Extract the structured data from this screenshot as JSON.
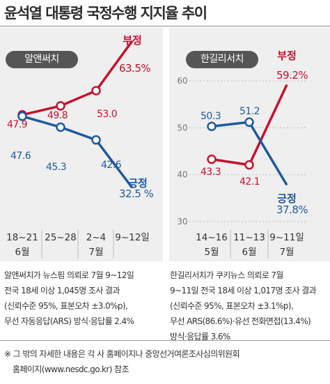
{
  "title": "윤석열 대통령 국정수행 지지율 추이",
  "charts": [
    {
      "type": "line",
      "pollster": "알앤써치",
      "categories": [
        [
          "18~21",
          "6월"
        ],
        [
          "25~28",
          ""
        ],
        [
          "2~4",
          "7월"
        ],
        [
          "9~12일",
          ""
        ]
      ],
      "series": [
        {
          "name": "부정",
          "color": "#c8102e",
          "values": [
            47.9,
            49.8,
            53.0,
            63.5
          ],
          "labels": [
            "47.9",
            "49.8",
            "53.0",
            "63.5%"
          ]
        },
        {
          "name": "긍정",
          "color": "#1d5a9e",
          "values": [
            47.6,
            45.3,
            42.6,
            32.5
          ],
          "labels": [
            "47.6",
            "45.3",
            "42.6",
            "32.5 %"
          ]
        }
      ],
      "ylim": [
        30,
        65
      ]
    },
    {
      "type": "line",
      "pollster": "한길리서치",
      "categories": [
        [
          "14~16",
          "5월"
        ],
        [
          "11~13",
          "6월"
        ],
        [
          "9~11일",
          "7월"
        ]
      ],
      "series": [
        {
          "name": "부정",
          "color": "#c8102e",
          "values": [
            43.3,
            42.1,
            59.2
          ],
          "labels": [
            "43.3",
            "42.1",
            "59.2%"
          ]
        },
        {
          "name": "긍정",
          "color": "#1d5a9e",
          "values": [
            50.3,
            51.2,
            37.8
          ],
          "labels": [
            "50.3",
            "51.2",
            "37.8%"
          ]
        }
      ],
      "yticks": [
        "60",
        "50",
        "40",
        "30"
      ],
      "ylim": [
        30,
        60
      ]
    }
  ],
  "notes": {
    "left": [
      "알앤써치가 뉴스핌 의뢰로 7월 9~12일",
      "전국 18세 이상 1,045명 조사 결과",
      "(신뢰수준 95%, 표본오차 ±3.0%p),",
      "무선 자동응답(ARS) 방식·응답률 2.4%"
    ],
    "right": [
      "한길리서치가 쿠키뉴스 의뢰로 7월",
      "9~11일 전국 18세 이상 1,017명 조사 결과",
      "(신뢰수준 95%, 표본오차 ±3.1%p),",
      "무선 ARS(86.6%)·유선 전화면접(13.4%)",
      "방식·응답률 3.6%"
    ]
  },
  "footnote": [
    "※ 그 밖의 자세한 내용은 각 사 홈페이지나 중앙선거여론조사심의위원회",
    "홈페이지(www.nesdc.go.kr) 참조"
  ],
  "colors": {
    "negative": "#c8102e",
    "positive": "#1d5a9e",
    "panel": "#efefef",
    "pill": "#555555"
  }
}
